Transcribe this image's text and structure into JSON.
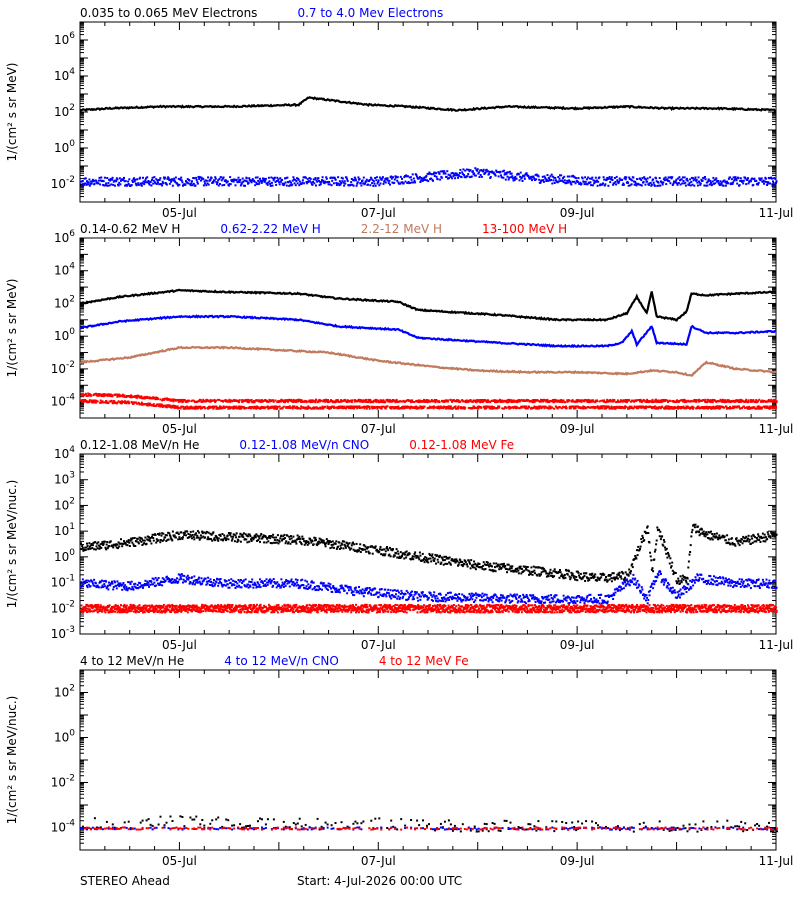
{
  "footer": {
    "left": "STEREO Ahead",
    "center": "Start:  4-Jul-2026 00:00 UTC"
  },
  "colors": {
    "black": "#000000",
    "blue": "#0000ff",
    "tan": "#c07a5e",
    "red": "#ff0000"
  },
  "chart_data": [
    {
      "type": "scatter",
      "ylabel": "1/(cm² s sr MeV)",
      "yscale": "log",
      "ylim_exp": [
        -3,
        7
      ],
      "ytick_exps": [
        -2,
        0,
        2,
        4,
        6
      ],
      "xlim_days": [
        0,
        7
      ],
      "xticks": [
        {
          "day": 1,
          "label": "05-Jul"
        },
        {
          "day": 3,
          "label": "07-Jul"
        },
        {
          "day": 5,
          "label": "09-Jul"
        },
        {
          "day": 7,
          "label": "11-Jul"
        }
      ],
      "series": [
        {
          "name": "0.035 to 0.065 MeV Electrons",
          "color": "black",
          "style": "line",
          "points": [
            [
              0,
              2.1
            ],
            [
              0.3,
              2.2
            ],
            [
              0.8,
              2.3
            ],
            [
              1.5,
              2.3
            ],
            [
              2.2,
              2.4
            ],
            [
              2.3,
              2.8
            ],
            [
              2.6,
              2.6
            ],
            [
              2.9,
              2.4
            ],
            [
              3.3,
              2.3
            ],
            [
              3.8,
              2.1
            ],
            [
              4.3,
              2.3
            ],
            [
              5.0,
              2.2
            ],
            [
              5.5,
              2.3
            ],
            [
              5.9,
              2.2
            ],
            [
              6.4,
              2.2
            ],
            [
              7,
              2.1
            ]
          ]
        },
        {
          "name": "0.7 to 4.0 Mev Electrons",
          "color": "blue",
          "style": "scatter",
          "spread": 0.5,
          "points": [
            [
              0,
              -1.8
            ],
            [
              1,
              -1.8
            ],
            [
              2,
              -1.8
            ],
            [
              3.0,
              -1.8
            ],
            [
              4.0,
              -1.3
            ],
            [
              4.5,
              -1.6
            ],
            [
              5.2,
              -1.8
            ],
            [
              6,
              -1.8
            ],
            [
              7,
              -1.8
            ]
          ]
        }
      ]
    },
    {
      "type": "scatter",
      "ylabel": "1/(cm² s sr MeV)",
      "yscale": "log",
      "ylim_exp": [
        -5,
        6
      ],
      "ytick_exps": [
        -4,
        -2,
        0,
        2,
        4,
        6
      ],
      "xlim_days": [
        0,
        7
      ],
      "xticks": [
        {
          "day": 1,
          "label": "05-Jul"
        },
        {
          "day": 3,
          "label": "07-Jul"
        },
        {
          "day": 5,
          "label": "09-Jul"
        },
        {
          "day": 7,
          "label": "11-Jul"
        }
      ],
      "series": [
        {
          "name": "0.14-0.62 MeV H",
          "color": "black",
          "style": "line",
          "points": [
            [
              0,
              2.0
            ],
            [
              0.4,
              2.4
            ],
            [
              1.0,
              2.8
            ],
            [
              1.5,
              2.7
            ],
            [
              2.2,
              2.6
            ],
            [
              2.6,
              2.3
            ],
            [
              3.2,
              2.1
            ],
            [
              3.4,
              1.6
            ],
            [
              4.2,
              1.3
            ],
            [
              4.8,
              1.0
            ],
            [
              5.3,
              1.0
            ],
            [
              5.5,
              1.4
            ],
            [
              5.6,
              2.4
            ],
            [
              5.7,
              1.4
            ],
            [
              5.75,
              2.7
            ],
            [
              5.8,
              1.2
            ],
            [
              6.0,
              1.0
            ],
            [
              6.1,
              1.5
            ],
            [
              6.15,
              2.6
            ],
            [
              6.3,
              2.5
            ],
            [
              6.6,
              2.6
            ],
            [
              7,
              2.7
            ]
          ]
        },
        {
          "name": "0.62-2.22 MeV H",
          "color": "blue",
          "style": "line",
          "points": [
            [
              0,
              0.5
            ],
            [
              0.4,
              0.9
            ],
            [
              1.0,
              1.2
            ],
            [
              1.5,
              1.2
            ],
            [
              2.2,
              1.0
            ],
            [
              2.6,
              0.6
            ],
            [
              3.2,
              0.4
            ],
            [
              3.4,
              -0.1
            ],
            [
              4.2,
              -0.4
            ],
            [
              4.8,
              -0.6
            ],
            [
              5.3,
              -0.6
            ],
            [
              5.45,
              -0.4
            ],
            [
              5.55,
              0.3
            ],
            [
              5.6,
              -0.5
            ],
            [
              5.75,
              0.6
            ],
            [
              5.8,
              -0.4
            ],
            [
              6.1,
              -0.5
            ],
            [
              6.15,
              0.6
            ],
            [
              6.3,
              0.2
            ],
            [
              6.6,
              0.2
            ],
            [
              7,
              0.3
            ]
          ]
        },
        {
          "name": "2.2-12 MeV H",
          "color": "tan",
          "style": "line",
          "points": [
            [
              0,
              -1.6
            ],
            [
              0.5,
              -1.3
            ],
            [
              1.0,
              -0.7
            ],
            [
              1.5,
              -0.7
            ],
            [
              2.5,
              -1.0
            ],
            [
              3.0,
              -1.5
            ],
            [
              3.6,
              -1.9
            ],
            [
              4.0,
              -2.1
            ],
            [
              4.5,
              -2.2
            ],
            [
              5.0,
              -2.2
            ],
            [
              5.5,
              -2.3
            ],
            [
              5.75,
              -2.1
            ],
            [
              6.0,
              -2.2
            ],
            [
              6.15,
              -2.4
            ],
            [
              6.3,
              -1.6
            ],
            [
              6.6,
              -2.0
            ],
            [
              7,
              -2.2
            ]
          ]
        },
        {
          "name": "13-100 MeV H",
          "color": "red",
          "style": "band",
          "points": [
            [
              0,
              -3.5
            ],
            [
              0.5,
              -3.6
            ],
            [
              1.0,
              -3.9
            ],
            [
              7,
              -3.9
            ]
          ],
          "spread": 0.8
        }
      ]
    },
    {
      "type": "scatter",
      "ylabel": "1/(cm² s sr MeV/nuc.)",
      "yscale": "log",
      "ylim_exp": [
        -3,
        4
      ],
      "ytick_exps": [
        -3,
        -2,
        -1,
        0,
        1,
        2,
        3,
        4
      ],
      "xlim_days": [
        0,
        7
      ],
      "xticks": [
        {
          "day": 1,
          "label": "05-Jul"
        },
        {
          "day": 3,
          "label": "07-Jul"
        },
        {
          "day": 5,
          "label": "09-Jul"
        },
        {
          "day": 7,
          "label": "11-Jul"
        }
      ],
      "series": [
        {
          "name": "0.12-1.08 MeV/n He",
          "color": "black",
          "style": "scatter",
          "spread": 0.35,
          "points": [
            [
              0,
              0.4
            ],
            [
              0.5,
              0.6
            ],
            [
              1.0,
              0.9
            ],
            [
              1.5,
              0.8
            ],
            [
              2.2,
              0.7
            ],
            [
              2.6,
              0.5
            ],
            [
              3.0,
              0.3
            ],
            [
              3.3,
              0.1
            ],
            [
              4.0,
              -0.3
            ],
            [
              4.8,
              -0.6
            ],
            [
              5.2,
              -0.8
            ],
            [
              5.5,
              -0.7
            ],
            [
              5.7,
              1.2
            ],
            [
              5.75,
              -0.6
            ],
            [
              5.8,
              1.2
            ],
            [
              6.0,
              -0.9
            ],
            [
              6.1,
              -0.8
            ],
            [
              6.15,
              1.2
            ],
            [
              6.3,
              0.9
            ],
            [
              6.6,
              0.6
            ],
            [
              7,
              0.9
            ]
          ]
        },
        {
          "name": "0.12-1.08 MeV/n CNO",
          "color": "blue",
          "style": "scatter",
          "spread": 0.35,
          "points": [
            [
              0,
              -1.0
            ],
            [
              0.5,
              -1.1
            ],
            [
              1.0,
              -0.8
            ],
            [
              1.5,
              -1.0
            ],
            [
              2.2,
              -1.0
            ],
            [
              2.8,
              -1.3
            ],
            [
              3.4,
              -1.5
            ],
            [
              4.5,
              -1.6
            ],
            [
              5.3,
              -1.6
            ],
            [
              5.55,
              -0.8
            ],
            [
              5.7,
              -1.6
            ],
            [
              5.8,
              -0.6
            ],
            [
              6.0,
              -1.5
            ],
            [
              6.2,
              -0.8
            ],
            [
              6.6,
              -1.0
            ],
            [
              7,
              -1.0
            ]
          ]
        },
        {
          "name": "0.12-1.08 MeV Fe",
          "color": "red",
          "style": "band",
          "spread": 0.3,
          "points": [
            [
              0,
              -1.9
            ],
            [
              7,
              -1.9
            ]
          ]
        }
      ]
    },
    {
      "type": "scatter",
      "ylabel": "1/(cm² s sr MeV/nuc.)",
      "yscale": "log",
      "ylim_exp": [
        -5,
        3
      ],
      "ytick_exps": [
        -4,
        -2,
        0,
        2
      ],
      "xlim_days": [
        0,
        7
      ],
      "xticks": [
        {
          "day": 1,
          "label": "05-Jul"
        },
        {
          "day": 3,
          "label": "07-Jul"
        },
        {
          "day": 5,
          "label": "09-Jul"
        },
        {
          "day": 7,
          "label": "11-Jul"
        }
      ],
      "series": [
        {
          "name": "4 to 12 MeV/n He",
          "color": "black",
          "style": "sparse",
          "spread": 0.5,
          "points": [
            [
              0,
              -3.8
            ],
            [
              1.0,
              -3.7
            ],
            [
              2.0,
              -3.8
            ],
            [
              3.0,
              -3.8
            ],
            [
              4.0,
              -3.9
            ],
            [
              5.0,
              -3.9
            ],
            [
              6.0,
              -3.9
            ],
            [
              7,
              -3.9
            ]
          ]
        },
        {
          "name": "4 to 12 MeV/n CNO",
          "color": "blue",
          "style": "sparse",
          "spread": 0.1,
          "points": [
            [
              0,
              -4.0
            ],
            [
              7,
              -4.0
            ]
          ]
        },
        {
          "name": "4 to 12 MeV Fe",
          "color": "red",
          "style": "sparse",
          "spread": 0.1,
          "points": [
            [
              0,
              -4.0
            ],
            [
              7,
              -4.0
            ]
          ]
        }
      ]
    }
  ]
}
